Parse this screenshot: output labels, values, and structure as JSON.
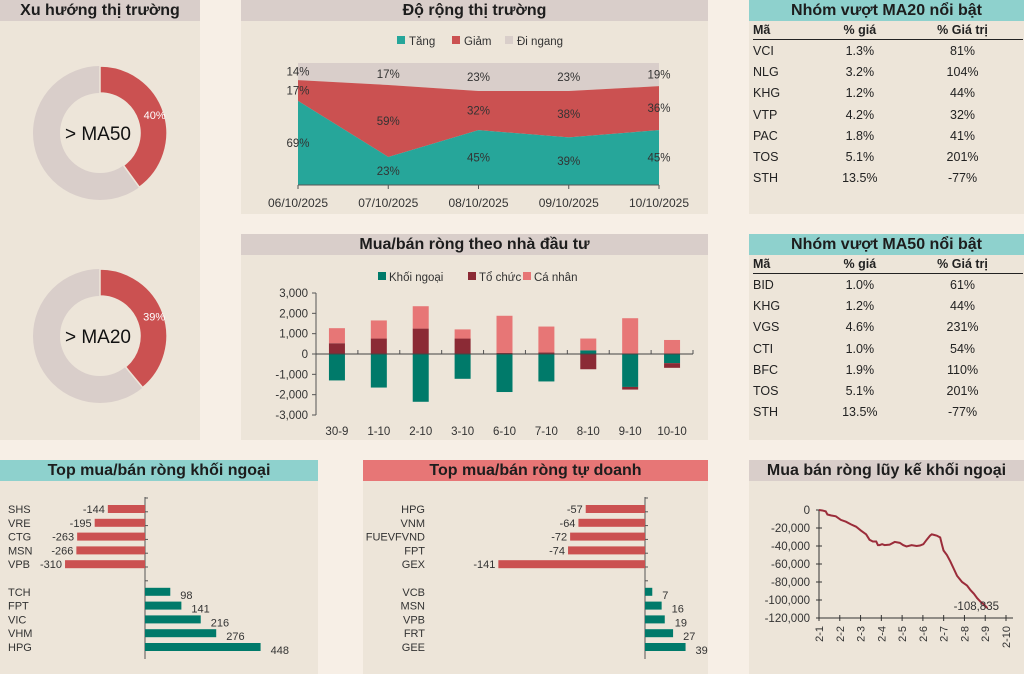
{
  "colors": {
    "teal": "#26a69a",
    "teal_dark": "#007a6a",
    "red": "#cb5151",
    "maroon": "#8b2a35",
    "pink": "#e77676",
    "grey": "#d9ceca",
    "line": "#9b2c3a"
  },
  "trend": {
    "title": "Xu hướng thị trường",
    "donuts": [
      {
        "center_label": "> MA50",
        "value_label": "40%",
        "value": 0.4
      },
      {
        "center_label": "> MA20",
        "value_label": "39%",
        "value": 0.39
      }
    ]
  },
  "breadth": {
    "title": "Độ rộng thị trường",
    "legend": [
      "Tăng",
      "Giảm",
      "Đi ngang"
    ]
  },
  "investor": {
    "title": "Mua/bán ròng theo nhà đầu tư",
    "legend": [
      "Khối ngoại",
      "Tổ chức",
      "Cá nhân"
    ]
  },
  "ma20": {
    "title": "Nhóm vượt MA20 nổi bật",
    "headers": [
      "Mã",
      "% giá",
      "% Giá trị"
    ],
    "rows": [
      [
        "VCI",
        "1.3%",
        "81%"
      ],
      [
        "NLG",
        "3.2%",
        "104%"
      ],
      [
        "KHG",
        "1.2%",
        "44%"
      ],
      [
        "VTP",
        "4.2%",
        "32%"
      ],
      [
        "PAC",
        "1.8%",
        "41%"
      ],
      [
        "TOS",
        "5.1%",
        "201%"
      ],
      [
        "STH",
        "13.5%",
        "-77%"
      ]
    ]
  },
  "ma50": {
    "title": "Nhóm vượt MA50 nổi bật",
    "headers": [
      "Mã",
      "% giá",
      "% Giá trị"
    ],
    "rows": [
      [
        "BID",
        "1.0%",
        "61%"
      ],
      [
        "KHG",
        "1.2%",
        "44%"
      ],
      [
        "VGS",
        "4.6%",
        "231%"
      ],
      [
        "CTI",
        "1.0%",
        "54%"
      ],
      [
        "BFC",
        "1.9%",
        "110%"
      ],
      [
        "TOS",
        "5.1%",
        "201%"
      ],
      [
        "STH",
        "13.5%",
        "-77%"
      ]
    ]
  },
  "foreign_top": {
    "title": "Top mua/bán ròng khối ngoại"
  },
  "prop_top": {
    "title": "Top mua/bán ròng tự doanh"
  },
  "cumulative": {
    "title": "Mua bán ròng lũy kế khối ngoại"
  },
  "chart_data": [
    {
      "id": "breadth",
      "type": "area",
      "title": "Độ rộng thị trường",
      "categories": [
        "06/10/2025",
        "07/10/2025",
        "08/10/2025",
        "09/10/2025",
        "10/10/2025"
      ],
      "series": [
        {
          "name": "Tăng",
          "values": [
            69,
            23,
            45,
            39,
            45
          ]
        },
        {
          "name": "Giảm",
          "values": [
            17,
            59,
            32,
            38,
            36
          ]
        },
        {
          "name": "Đi ngang",
          "values": [
            14,
            17,
            23,
            23,
            19
          ]
        }
      ],
      "stacked": true,
      "ylim": [
        0,
        100
      ],
      "legend": "top"
    },
    {
      "id": "investor",
      "type": "bar",
      "stacked": true,
      "title": "Mua/bán ròng theo nhà đầu tư",
      "categories": [
        "30-9",
        "1-10",
        "2-10",
        "3-10",
        "6-10",
        "7-10",
        "8-10",
        "9-10",
        "10-10"
      ],
      "series": [
        {
          "name": "Khối ngoại",
          "values": [
            -1300,
            -1650,
            -2350,
            -1220,
            -1870,
            -1350,
            180,
            -1620,
            -450
          ]
        },
        {
          "name": "Tổ chức",
          "values": [
            530,
            760,
            1250,
            760,
            50,
            80,
            -750,
            -130,
            -230
          ]
        },
        {
          "name": "Cá nhân",
          "values": [
            740,
            890,
            1100,
            450,
            1830,
            1270,
            580,
            1760,
            690
          ]
        }
      ],
      "yticks": [
        "3,000",
        "2,000",
        "1,000",
        "0",
        "-1,000",
        "-2,000",
        "-3,000"
      ],
      "ylim": [
        -3000,
        3000
      ],
      "legend": "top"
    },
    {
      "id": "foreign_top",
      "type": "bar",
      "orientation": "horizontal",
      "title": "Top mua/bán ròng khối ngoại",
      "categories": [
        "SHS",
        "VRE",
        "CTG",
        "MSN",
        "VPB",
        "TCH",
        "FPT",
        "VIC",
        "VHM",
        "HPG"
      ],
      "values": [
        -144,
        -195,
        -263,
        -266,
        -310,
        98,
        141,
        216,
        276,
        448
      ],
      "labels": [
        "-144",
        "-195",
        "-263",
        "-266",
        "-310",
        "98",
        "141",
        "216",
        "276",
        "448"
      ]
    },
    {
      "id": "prop_top",
      "type": "bar",
      "orientation": "horizontal",
      "title": "Top mua/bán ròng tự doanh",
      "categories": [
        "HPG",
        "VNM",
        "FUEVFVND",
        "FPT",
        "GEX",
        "VCB",
        "MSN",
        "VPB",
        "FRT",
        "GEE"
      ],
      "values": [
        -57,
        -64,
        -72,
        -74,
        -141,
        7,
        16,
        19,
        27,
        39
      ],
      "labels": [
        "-57",
        "-64",
        "-72",
        "-74",
        "-141",
        "7",
        "16",
        "19",
        "27",
        "39"
      ]
    },
    {
      "id": "cumulative",
      "type": "line",
      "title": "Mua bán ròng lũy kế khối ngoại",
      "xticks": [
        "2-1",
        "2-2",
        "2-3",
        "2-4",
        "2-5",
        "2-6",
        "2-7",
        "2-8",
        "2-9",
        "2-10"
      ],
      "yticks": [
        "0",
        "-20,000",
        "-40,000",
        "-60,000",
        "-80,000",
        "-100,000",
        "-120,000"
      ],
      "ylim": [
        -120000,
        0
      ],
      "x": [
        0,
        0.2,
        0.4,
        0.5,
        0.7,
        1.0,
        1.3,
        1.6,
        1.9,
        2.2,
        2.5,
        2.8,
        3.0,
        3.2,
        3.4,
        3.5,
        3.6,
        3.75,
        3.9,
        4.2,
        4.5,
        4.8,
        5.0,
        5.2,
        5.5,
        5.8,
        6.0,
        6.2,
        6.4,
        6.6,
        6.7,
        6.8,
        7.0,
        7.2,
        7.3,
        7.4,
        7.6,
        7.8,
        8.0,
        8.2,
        8.5,
        8.8,
        9.0,
        9.2,
        9.4,
        9.6,
        9.8,
        10.0
      ],
      "y": [
        0,
        -500,
        -1500,
        -5000,
        -6000,
        -7000,
        -11000,
        -13000,
        -16000,
        -18500,
        -23000,
        -27000,
        -33000,
        -35000,
        -35000,
        -39000,
        -39000,
        -38000,
        -39000,
        -38500,
        -35500,
        -36500,
        -39000,
        -40500,
        -39000,
        -40000,
        -39500,
        -38000,
        -33000,
        -28500,
        -27000,
        -27500,
        -28500,
        -30500,
        -38000,
        -45000,
        -50000,
        -57000,
        -65000,
        -73000,
        -80000,
        -84000,
        -89000,
        -93000,
        -98000,
        -102000,
        -105000,
        -108835
      ],
      "annotation": "-108,835"
    }
  ]
}
